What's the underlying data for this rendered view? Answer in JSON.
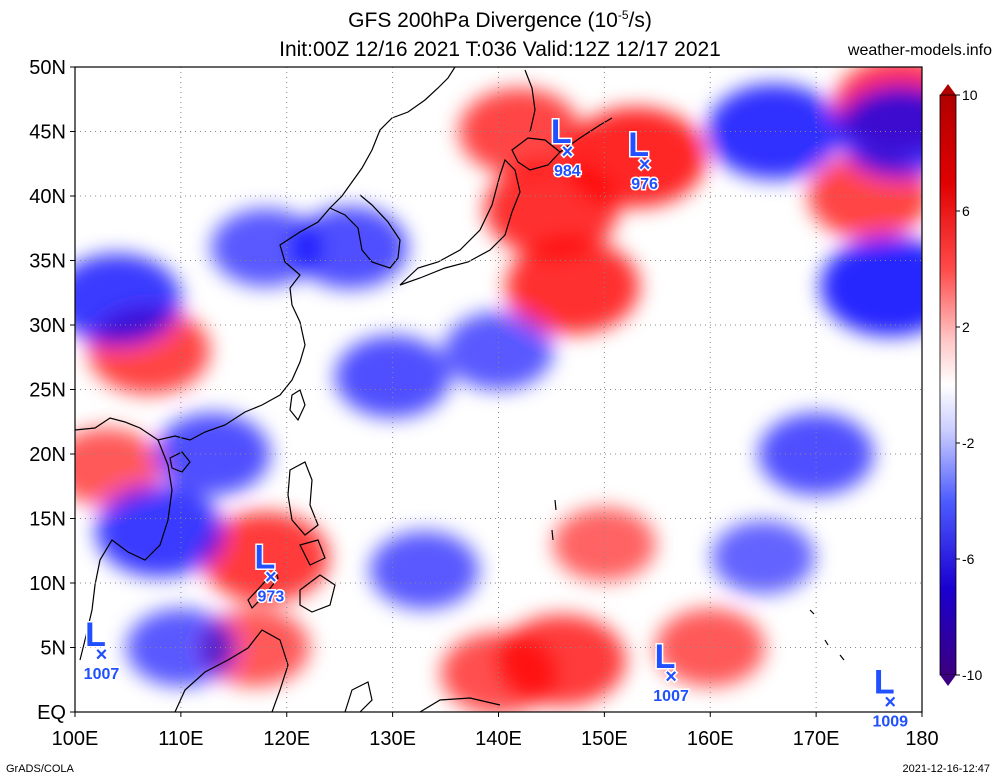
{
  "title": {
    "line1_prefix": "GFS 200hPa Divergence (10",
    "line1_exp": "-5",
    "line1_suffix": "/s)",
    "line2": "Init:00Z 12/16 2021 T:036 Valid:12Z 12/17 2021"
  },
  "website": "weather-models.info",
  "footer": {
    "software": "GrADS/COLA",
    "timestamp": "2021-12-16-12:47"
  },
  "axes": {
    "lon_labels": [
      "100E",
      "110E",
      "120E",
      "130E",
      "140E",
      "150E",
      "160E",
      "170E",
      "180"
    ],
    "lat_labels": [
      "EQ",
      "5N",
      "10N",
      "15N",
      "20N",
      "25N",
      "30N",
      "35N",
      "40N",
      "45N",
      "50N"
    ],
    "lon_range": [
      100,
      180
    ],
    "lat_range": [
      0,
      50
    ]
  },
  "colorbar": {
    "labels": [
      "10",
      "6",
      "2",
      "-2",
      "-6",
      "-10"
    ],
    "values": [
      10,
      6,
      2,
      -2,
      -6,
      -10
    ],
    "range": [
      -10,
      10
    ]
  },
  "colors": {
    "positive": "#ff0000",
    "negative": "#0000ff",
    "dark_positive": "#b00000",
    "dark_negative": "#3b0080",
    "low_marker": "#2050ff"
  },
  "lows": [
    {
      "symbol": "L",
      "marker": "×",
      "pressure": "984",
      "lon": 146.5,
      "lat": 43.5
    },
    {
      "symbol": "L",
      "marker": "×",
      "pressure": "976",
      "lon": 153.8,
      "lat": 42.5
    },
    {
      "symbol": "L",
      "marker": "×",
      "pressure": "973",
      "lon": 118.5,
      "lat": 10.5
    },
    {
      "symbol": "L",
      "marker": "×",
      "pressure": "1007",
      "lon": 102.5,
      "lat": 4.5
    },
    {
      "symbol": "L",
      "marker": "×",
      "pressure": "1007",
      "lon": 156.3,
      "lat": 2.8
    },
    {
      "symbol": "L",
      "marker": "×",
      "pressure": "1009",
      "lon": 177.0,
      "lat": 0.8
    }
  ],
  "features": [
    {
      "type": "positive",
      "lon": 153,
      "lat": 43,
      "strength": 1.0
    },
    {
      "type": "positive",
      "lon": 145,
      "lat": 39,
      "strength": 0.9
    },
    {
      "type": "positive",
      "lon": 147,
      "lat": 33,
      "strength": 0.9
    },
    {
      "type": "positive",
      "lon": 142,
      "lat": 45,
      "strength": 0.7
    },
    {
      "type": "positive",
      "lon": 178,
      "lat": 47,
      "strength": 0.9
    },
    {
      "type": "positive",
      "lon": 175,
      "lat": 40,
      "strength": 0.7
    },
    {
      "type": "positive",
      "lon": 107,
      "lat": 28,
      "strength": 0.7
    },
    {
      "type": "positive",
      "lon": 118,
      "lat": 12,
      "strength": 0.8
    },
    {
      "type": "positive",
      "lon": 146,
      "lat": 4,
      "strength": 0.8
    },
    {
      "type": "positive",
      "lon": 140,
      "lat": 3,
      "strength": 0.6
    },
    {
      "type": "positive",
      "lon": 103,
      "lat": 19,
      "strength": 0.5
    },
    {
      "type": "positive",
      "lon": 117,
      "lat": 5,
      "strength": 0.5
    },
    {
      "type": "positive",
      "lon": 160,
      "lat": 5,
      "strength": 0.5
    },
    {
      "type": "positive",
      "lon": 150,
      "lat": 13,
      "strength": 0.4
    },
    {
      "type": "negative",
      "lon": 166,
      "lat": 45,
      "strength": 0.9
    },
    {
      "type": "negative",
      "lon": 177,
      "lat": 33,
      "strength": 1.0
    },
    {
      "type": "negative",
      "lon": 178,
      "lat": 45,
      "strength": 0.8
    },
    {
      "type": "negative",
      "lon": 104,
      "lat": 32,
      "strength": 0.8
    },
    {
      "type": "negative",
      "lon": 126,
      "lat": 36,
      "strength": 0.6
    },
    {
      "type": "negative",
      "lon": 118,
      "lat": 36,
      "strength": 0.5
    },
    {
      "type": "negative",
      "lon": 130,
      "lat": 26,
      "strength": 0.6
    },
    {
      "type": "negative",
      "lon": 140,
      "lat": 28,
      "strength": 0.5
    },
    {
      "type": "negative",
      "lon": 113,
      "lat": 20,
      "strength": 0.6
    },
    {
      "type": "negative",
      "lon": 108,
      "lat": 14,
      "strength": 0.8
    },
    {
      "type": "negative",
      "lon": 170,
      "lat": 20,
      "strength": 0.6
    },
    {
      "type": "negative",
      "lon": 110,
      "lat": 5,
      "strength": 0.5
    },
    {
      "type": "negative",
      "lon": 133,
      "lat": 11,
      "strength": 0.5
    },
    {
      "type": "negative",
      "lon": 165,
      "lat": 12,
      "strength": 0.4
    }
  ]
}
